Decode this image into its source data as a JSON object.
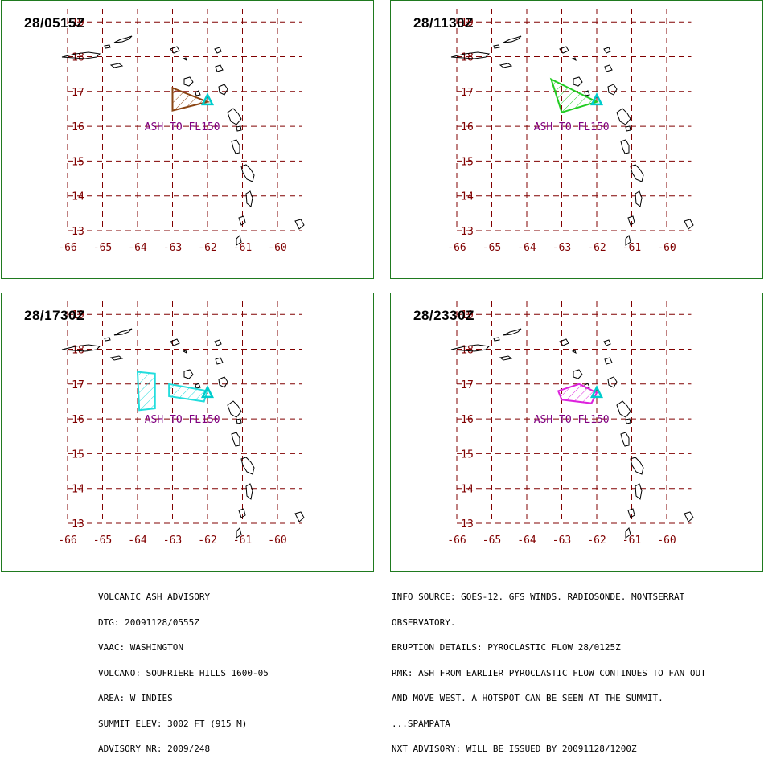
{
  "panels": [
    {
      "time": "28/0515Z",
      "ash_color": "#8b4513",
      "ash_label": "ASH TO FL150",
      "shape": "triangle"
    },
    {
      "time": "28/1130Z",
      "ash_color": "#22cc22",
      "ash_label": "ASH TO FL150",
      "shape": "triangle-large"
    },
    {
      "time": "28/1730Z",
      "ash_color": "#22dddd",
      "ash_label": "ASH TO FL150",
      "shape": "plume-west"
    },
    {
      "time": "28/2330Z",
      "ash_color": "#dd22dd",
      "ash_label": "ASH TO FL150",
      "shape": "plume-small"
    }
  ],
  "map": {
    "lon_labels": [
      "-66",
      "-65",
      "-64",
      "-63",
      "-62",
      "-61",
      "-60"
    ],
    "lat_labels": [
      "13",
      "14",
      "15",
      "16",
      "17",
      "18",
      "19"
    ],
    "grid_color": "#800000",
    "coast_color": "#000000",
    "volcano_color": "#00cccc"
  },
  "advisory_left": [
    "VOLCANIC ASH ADVISORY",
    "DTG: 20091128/0555Z",
    "VAAC: WASHINGTON",
    "VOLCANO: SOUFRIERE HILLS 1600-05",
    "AREA: W_INDIES",
    "SUMMIT ELEV: 3002 FT (915 M)",
    "ADVISORY NR: 2009/248"
  ],
  "advisory_right": [
    "INFO SOURCE: GOES-12. GFS WINDS. RADIOSONDE. MONTSERRAT",
    "OBSERVATORY.",
    "ERUPTION DETAILS: PYROCLASTIC FLOW 28/0125Z",
    "RMK: ASH FROM EARLIER PYROCLASTIC FLOW CONTINUES TO FAN OUT",
    "AND MOVE WEST. A HOTSPOT CAN BE SEEN AT THE SUMMIT.",
    "...SPAMPATA",
    "NXT ADVISORY: WILL BE ISSUED BY 20091128/1200Z"
  ]
}
